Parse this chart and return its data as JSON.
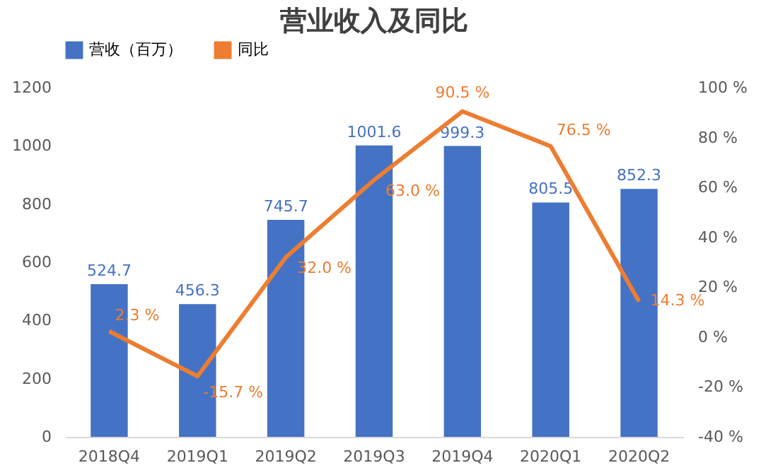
{
  "chart_data": {
    "type": "bar",
    "title": "营业收入及同比",
    "categories": [
      "2018Q4",
      "2019Q1",
      "2019Q2",
      "2019Q3",
      "2019Q4",
      "2020Q1",
      "2020Q2"
    ],
    "series": [
      {
        "name": "营收（百万）",
        "color": "#4472c4",
        "values": [
          524.7,
          456.3,
          745.7,
          1001.6,
          999.3,
          805.5,
          852.3
        ]
      },
      {
        "name": "同比",
        "type": "line",
        "axis": "y2",
        "color": "#ed7d31",
        "marker": "none",
        "values": [
          2.3,
          -15.7,
          32.0,
          63.0,
          90.5,
          76.5,
          14.3
        ],
        "value_labels": [
          "2.3 %",
          "-15.7 %",
          "32.0 %",
          "63.0 %",
          "90.5 %",
          "76.5 %",
          "14.3 %"
        ]
      }
    ],
    "data_labels": true,
    "ylim": [
      0,
      1200
    ],
    "yticks": [
      0,
      200,
      400,
      600,
      800,
      1000,
      1200
    ],
    "y2lim": [
      -40,
      100
    ],
    "y2ticks": [
      {
        "value": -40,
        "label": "-40 %"
      },
      {
        "value": -20,
        "label": "-20 %"
      },
      {
        "value": 0,
        "label": "0 %"
      },
      {
        "value": 20,
        "label": "20 %"
      },
      {
        "value": 40,
        "label": "40 %"
      },
      {
        "value": 60,
        "label": "60 %"
      },
      {
        "value": 80,
        "label": "80 %"
      },
      {
        "value": 100,
        "label": "100 %"
      }
    ],
    "grid": false,
    "legend": "top"
  }
}
